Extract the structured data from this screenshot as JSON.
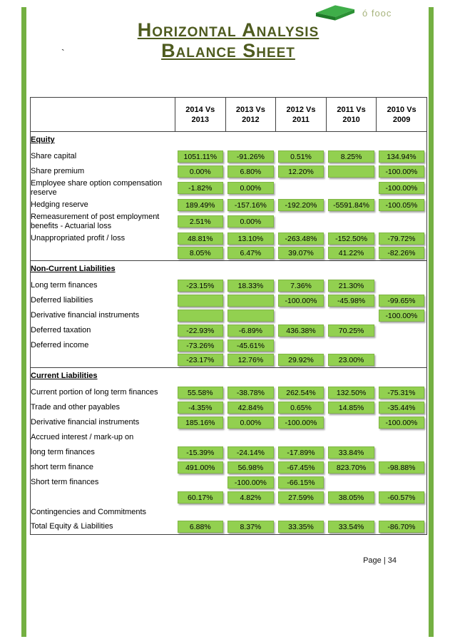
{
  "page": {
    "stray_char": "`",
    "footer_label": "Page | 34"
  },
  "logo": {
    "text": "ó fooc"
  },
  "header": {
    "title_line1": "Horizontal Analysis",
    "title_line2": "Balance Sheet"
  },
  "colors": {
    "cell_green": "#92d050",
    "side_bar_green": "#74b042",
    "title_green": "#4e5b1f",
    "logo_green_light": "#3fae49",
    "logo_green_dark": "#1f7a28"
  },
  "table": {
    "period_headers": [
      {
        "l1": "2014 Vs",
        "l2": "2013"
      },
      {
        "l1": "2013 Vs",
        "l2": "2012"
      },
      {
        "l1": "2012 Vs",
        "l2": "2011"
      },
      {
        "l1": "2011 Vs",
        "l2": "2010"
      },
      {
        "l1": "2010 Vs",
        "l2": "2009"
      }
    ],
    "rows": [
      {
        "kind": "section",
        "label": "Equity",
        "cells": [
          null,
          null,
          null,
          null,
          null
        ]
      },
      {
        "kind": "data",
        "label": "Share capital",
        "cells": [
          "1051.11%",
          "-91.26%",
          "0.51%",
          "8.25%",
          "134.94%"
        ]
      },
      {
        "kind": "data",
        "label": "Share premium",
        "cells": [
          "0.00%",
          "6.80%",
          "12.20%",
          "",
          "-100.00%"
        ]
      },
      {
        "kind": "data",
        "label": "Employee share option compensation reserve",
        "cells": [
          "-1.82%",
          "0.00%",
          null,
          null,
          "-100.00%"
        ]
      },
      {
        "kind": "data",
        "label": "Hedging reserve",
        "cells": [
          "189.49%",
          "-157.16%",
          "-192.20%",
          "-5591.84%",
          "-100.05%"
        ]
      },
      {
        "kind": "data",
        "label": "Remeasurement of post employment benefits - Actuarial loss",
        "cells": [
          "2.51%",
          "0.00%",
          null,
          null,
          null
        ]
      },
      {
        "kind": "data",
        "label": "Unappropriated profit / loss",
        "cells": [
          "48.81%",
          "13.10%",
          "-263.48%",
          "-152.50%",
          "-79.72%"
        ]
      },
      {
        "kind": "data",
        "label": "",
        "cells": [
          "8.05%",
          "6.47%",
          "39.07%",
          "41.22%",
          "-82.26%"
        ]
      },
      {
        "kind": "section",
        "label": "Non-Current Liabilities",
        "cells": [
          null,
          null,
          null,
          null,
          null
        ]
      },
      {
        "kind": "data",
        "label": "Long term finances",
        "cells": [
          "-23.15%",
          "18.33%",
          "7.36%",
          "21.30%",
          null
        ]
      },
      {
        "kind": "data",
        "label": "Deferred liabilities",
        "cells": [
          "",
          "",
          "-100.00%",
          "-45.98%",
          "-99.65%"
        ]
      },
      {
        "kind": "data",
        "label": "Derivative financial instruments",
        "cells": [
          "",
          "",
          null,
          null,
          "-100.00%"
        ]
      },
      {
        "kind": "data",
        "label": "Deferred taxation",
        "cells": [
          "-22.93%",
          "-6.89%",
          "436.38%",
          "70.25%",
          null
        ]
      },
      {
        "kind": "data",
        "label": "Deferred income",
        "cells": [
          "-73.26%",
          "-45.61%",
          null,
          null,
          null
        ]
      },
      {
        "kind": "data",
        "label": "",
        "cells": [
          "-23.17%",
          "12.76%",
          "29.92%",
          "23.00%",
          null
        ]
      },
      {
        "kind": "section",
        "label": "Current Liabilities",
        "cells": [
          null,
          null,
          null,
          null,
          null
        ]
      },
      {
        "kind": "data",
        "label": "Current portion of long term finances",
        "cells": [
          "55.58%",
          "-38.78%",
          "262.54%",
          "132.50%",
          "-75.31%"
        ]
      },
      {
        "kind": "data",
        "label": "Trade and other payables",
        "cells": [
          "-4.35%",
          "42.84%",
          "0.65%",
          "14.85%",
          "-35.44%"
        ]
      },
      {
        "kind": "data",
        "label": "Derivative financial instruments",
        "cells": [
          "185.16%",
          "0.00%",
          "-100.00%",
          null,
          "-100.00%"
        ]
      },
      {
        "kind": "data",
        "label": "Accrued interest / mark-up on",
        "cells": [
          null,
          null,
          null,
          null,
          null
        ]
      },
      {
        "kind": "data",
        "label": " long term finances",
        "cells": [
          "-15.39%",
          "-24.14%",
          "-17.89%",
          "33.84%",
          null
        ]
      },
      {
        "kind": "data",
        "label": "short term finance",
        "cells": [
          "491.00%",
          "56.98%",
          "-67.45%",
          "823.70%",
          "-98.88%"
        ]
      },
      {
        "kind": "data",
        "label": "Short term finances",
        "cells": [
          null,
          "-100.00%",
          "-66.15%",
          null,
          null
        ]
      },
      {
        "kind": "data",
        "label": "",
        "cells": [
          "60.17%",
          "4.82%",
          "27.59%",
          "38.05%",
          "-60.57%"
        ]
      },
      {
        "kind": "data",
        "label": "Contingencies and Commitments",
        "cells": [
          null,
          null,
          null,
          null,
          null
        ]
      },
      {
        "kind": "data",
        "label": "Total Equity & Liabilities",
        "cells": [
          "6.88%",
          "8.37%",
          "33.35%",
          "33.54%",
          "-86.70%"
        ]
      }
    ]
  }
}
